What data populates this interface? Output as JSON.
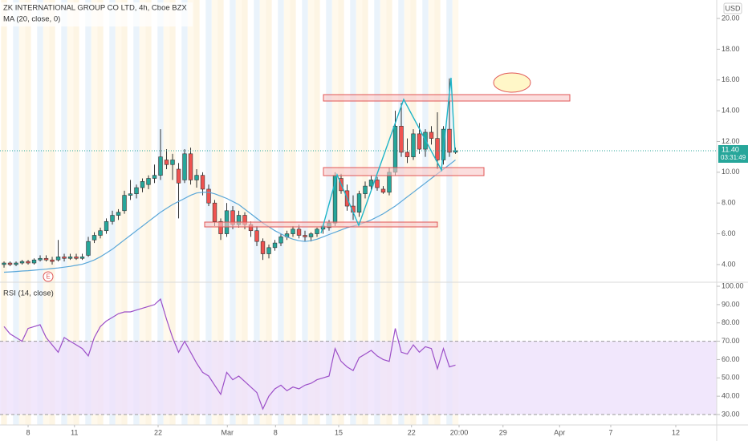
{
  "chart_data": [
    {
      "type": "candlestick",
      "title": "ZK INTERNATIONAL GROUP CO LTD, 4h, Cboe BZX",
      "currency": "USD",
      "x": [
        0,
        1,
        2,
        3,
        4,
        5,
        6,
        7,
        8,
        9,
        10,
        11,
        12,
        13,
        14,
        15,
        16,
        17,
        18,
        19,
        20,
        21,
        22,
        23,
        24,
        25,
        26,
        27,
        28,
        29,
        30,
        31,
        32,
        33,
        34,
        35,
        36,
        37,
        38,
        39,
        40,
        41,
        42,
        43,
        44,
        45,
        46,
        47,
        48,
        49,
        50,
        51,
        52,
        53,
        54,
        55,
        56,
        57,
        58,
        59,
        60,
        61,
        62,
        63,
        64,
        65,
        66,
        67,
        68,
        69,
        70,
        71,
        72,
        73,
        74,
        75
      ],
      "open": [
        4.0,
        4.1,
        4.0,
        4.1,
        4.2,
        4.1,
        4.3,
        4.4,
        4.3,
        4.3,
        4.5,
        4.4,
        4.5,
        4.4,
        4.6,
        5.6,
        5.9,
        6.2,
        6.8,
        7.2,
        7.5,
        8.5,
        8.6,
        9.0,
        9.2,
        9.6,
        9.8,
        10.8,
        10.5,
        10.2,
        9.5,
        11.2,
        9.5,
        9.8,
        8.9,
        8.0,
        6.8,
        6.0,
        7.5,
        6.6,
        7.2,
        6.6,
        6.2,
        5.5,
        4.7,
        5.1,
        5.4,
        5.8,
        6.0,
        6.3,
        5.9,
        5.8,
        6.0,
        6.3,
        6.4,
        6.7,
        9.6,
        8.8,
        7.8,
        7.4,
        8.6,
        9.1,
        9.5,
        8.9,
        8.7,
        10.0,
        13.0,
        11.3,
        11.0,
        12.5,
        11.5,
        12.6,
        12.2,
        10.8,
        12.8,
        11.3
      ],
      "high": [
        4.2,
        4.2,
        4.2,
        4.3,
        4.3,
        4.4,
        4.6,
        4.6,
        4.5,
        5.6,
        4.7,
        4.7,
        4.7,
        4.7,
        5.8,
        6.1,
        6.4,
        7.0,
        7.5,
        7.6,
        8.8,
        9.5,
        9.2,
        9.6,
        9.8,
        10.5,
        12.8,
        11.5,
        11.2,
        10.6,
        11.5,
        11.6,
        10.2,
        10.0,
        9.2,
        8.2,
        7.0,
        8.0,
        7.8,
        7.5,
        7.4,
        6.8,
        6.5,
        5.7,
        5.3,
        5.6,
        6.0,
        6.2,
        6.5,
        6.6,
        6.2,
        6.1,
        6.4,
        6.6,
        6.9,
        10.0,
        9.9,
        9.2,
        8.5,
        8.8,
        9.4,
        9.8,
        9.7,
        9.1,
        10.3,
        14.0,
        14.5,
        12.2,
        12.8,
        13.2,
        12.8,
        13.0,
        13.9,
        13.0,
        16.1,
        11.6
      ],
      "low": [
        3.8,
        3.9,
        3.9,
        4.0,
        4.0,
        4.0,
        4.2,
        4.2,
        4.0,
        4.2,
        4.2,
        4.3,
        4.3,
        4.3,
        4.5,
        5.4,
        5.7,
        6.0,
        6.6,
        6.9,
        7.3,
        8.2,
        8.3,
        8.7,
        8.9,
        9.3,
        9.5,
        10.2,
        9.5,
        7.0,
        9.3,
        9.2,
        9.0,
        8.5,
        7.8,
        6.5,
        5.6,
        5.8,
        6.3,
        6.4,
        6.3,
        5.8,
        5.2,
        4.3,
        4.4,
        4.9,
        5.2,
        5.6,
        5.8,
        5.7,
        5.5,
        5.5,
        5.8,
        6.0,
        6.2,
        6.5,
        8.6,
        7.5,
        6.9,
        7.1,
        8.3,
        8.8,
        8.8,
        8.6,
        8.5,
        9.8,
        11.0,
        10.6,
        10.8,
        11.2,
        11.0,
        11.8,
        10.2,
        10.5,
        11.0,
        11.2
      ],
      "close": [
        4.1,
        4.0,
        4.1,
        4.2,
        4.1,
        4.3,
        4.4,
        4.3,
        4.2,
        4.5,
        4.4,
        4.5,
        4.4,
        4.5,
        5.5,
        5.9,
        6.2,
        6.8,
        7.2,
        7.4,
        8.5,
        8.6,
        9.0,
        9.4,
        9.6,
        9.8,
        11.0,
        10.5,
        10.8,
        9.3,
        11.2,
        9.5,
        9.8,
        8.9,
        8.0,
        6.8,
        6.0,
        7.5,
        6.6,
        7.2,
        6.6,
        6.2,
        5.5,
        4.7,
        5.1,
        5.4,
        5.8,
        6.0,
        6.3,
        5.9,
        5.8,
        6.0,
        6.3,
        6.5,
        6.7,
        9.8,
        8.8,
        7.8,
        7.4,
        8.6,
        9.1,
        9.5,
        9.0,
        8.7,
        10.0,
        13.0,
        11.3,
        11.0,
        12.5,
        11.5,
        12.6,
        12.2,
        10.8,
        12.8,
        11.3,
        11.4
      ],
      "up_color": "#26a69a",
      "down_color": "#ef5350",
      "series": [
        {
          "name": "MA (20, close, 0)",
          "color": "#5aa7d8",
          "values": [
            3.5,
            3.52,
            3.55,
            3.58,
            3.6,
            3.63,
            3.67,
            3.7,
            3.74,
            3.78,
            3.83,
            3.88,
            3.95,
            4.02,
            4.15,
            4.3,
            4.5,
            4.75,
            5.0,
            5.3,
            5.6,
            5.9,
            6.2,
            6.5,
            6.8,
            7.1,
            7.4,
            7.65,
            7.9,
            8.1,
            8.3,
            8.5,
            8.65,
            8.7,
            8.7,
            8.6,
            8.45,
            8.3,
            8.1,
            7.9,
            7.6,
            7.3,
            7.0,
            6.7,
            6.45,
            6.2,
            6.0,
            5.8,
            5.65,
            5.55,
            5.5,
            5.55,
            5.65,
            5.8,
            5.95,
            6.1,
            6.25,
            6.4,
            6.5,
            6.6,
            6.75,
            6.9,
            7.1,
            7.3,
            7.55,
            7.8,
            8.1,
            8.4,
            8.7,
            9.0,
            9.3,
            9.6,
            9.9,
            10.2,
            10.5,
            10.8
          ]
        }
      ],
      "last_price": {
        "value": 11.4,
        "label": "11.40"
      },
      "last_color": "#26a69a",
      "countdown": "03:31:49",
      "annotations": [
        "E"
      ],
      "ylim": [
        2.85,
        21.2
      ],
      "yticks": [
        {
          "value": 4,
          "label": "4.00"
        },
        {
          "value": 6,
          "label": "6.00"
        },
        {
          "value": 8,
          "label": "8.00"
        },
        {
          "value": 10,
          "label": "10.00"
        },
        {
          "value": 12,
          "label": "12.00"
        },
        {
          "value": 14,
          "label": "14.00"
        },
        {
          "value": 16,
          "label": "16.00"
        },
        {
          "value": 18,
          "label": "18.00"
        },
        {
          "value": 20,
          "label": "20.00"
        }
      ],
      "xlim": [
        -0.67,
        118.4
      ],
      "xticks": [
        {
          "value": 4,
          "label": "8"
        },
        {
          "value": 11.7,
          "label": "11"
        },
        {
          "value": 25.6,
          "label": "22"
        },
        {
          "value": 37.1,
          "label": "Mar"
        },
        {
          "value": 45.1,
          "label": "8"
        },
        {
          "value": 55.6,
          "label": "15"
        },
        {
          "value": 67.7,
          "label": "22"
        },
        {
          "value": 75.6,
          "label": "20:00"
        },
        {
          "value": 82.9,
          "label": "29"
        },
        {
          "value": 92.3,
          "label": "Apr"
        },
        {
          "value": 100.8,
          "label": "7"
        },
        {
          "value": 111.6,
          "label": "12"
        }
      ]
    },
    {
      "type": "line",
      "series": [
        {
          "name": "RSI (14, close)",
          "color": "#9c4fc8",
          "values": [
            78,
            74,
            72,
            70,
            77,
            78,
            79,
            72,
            68,
            64,
            72,
            70,
            68,
            66,
            62,
            72,
            78,
            81,
            83,
            85,
            86,
            86,
            87,
            88,
            89,
            90,
            93,
            82,
            72,
            64,
            70,
            64,
            58,
            53,
            51,
            46,
            41,
            53,
            49,
            51,
            48,
            45,
            42,
            33,
            40,
            44,
            46,
            43,
            45,
            44,
            46,
            47,
            49,
            50,
            51,
            66,
            59,
            56,
            54,
            61,
            63,
            65,
            62,
            60,
            59,
            77,
            64,
            63,
            68,
            64,
            67,
            66,
            55,
            66,
            56,
            57
          ]
        }
      ],
      "band": [
        30,
        70
      ],
      "band_color": "#ede1fb",
      "ylim": [
        24.3,
        102.2
      ],
      "yticks": [
        {
          "value": 30,
          "label": "30.00"
        },
        {
          "value": 40,
          "label": "40.00"
        },
        {
          "value": 50,
          "label": "50.00"
        },
        {
          "value": 60,
          "label": "60.00"
        },
        {
          "value": 70,
          "label": "70.00"
        },
        {
          "value": 80,
          "label": "80.00"
        },
        {
          "value": 90,
          "label": "90.00"
        },
        {
          "value": 100,
          "label": "100.00"
        }
      ]
    }
  ]
}
